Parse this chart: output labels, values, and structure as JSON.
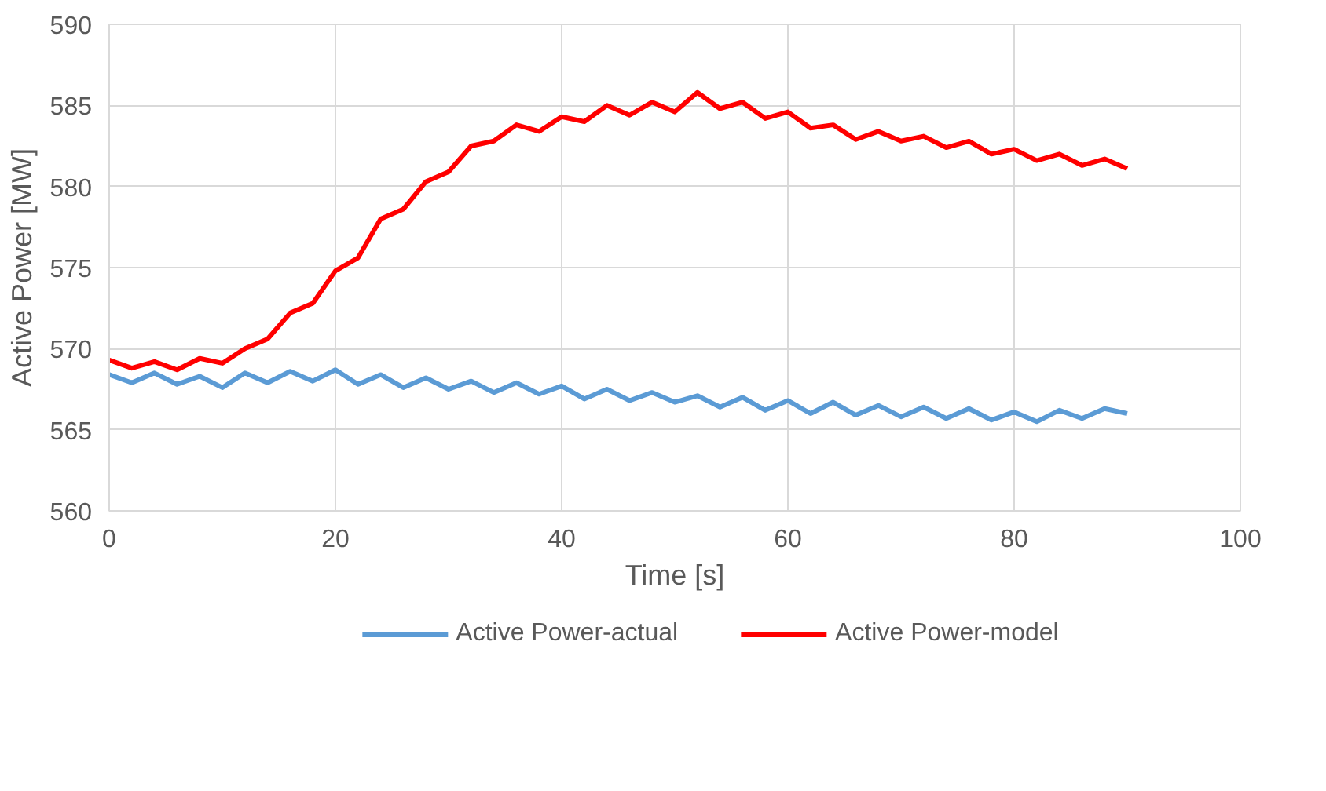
{
  "chart_data": {
    "type": "line",
    "xlabel": "Time [s]",
    "ylabel": "Active Power [MW]",
    "xlim": [
      0,
      100
    ],
    "xticks": [
      0,
      20,
      40,
      60,
      80,
      100
    ],
    "ylim": [
      560,
      590
    ],
    "yticks": [
      560,
      565,
      570,
      575,
      580,
      585,
      590
    ],
    "grid": true,
    "legend": "bottom",
    "marker": "none",
    "line_style": "solid",
    "x": [
      0,
      2,
      4,
      6,
      8,
      10,
      12,
      14,
      16,
      18,
      20,
      22,
      24,
      26,
      28,
      30,
      32,
      34,
      36,
      38,
      40,
      42,
      44,
      46,
      48,
      50,
      52,
      54,
      56,
      58,
      60,
      62,
      64,
      66,
      68,
      70,
      72,
      74,
      76,
      78,
      80,
      82,
      84,
      86,
      88,
      90
    ],
    "series": [
      {
        "name": "Active Power-actual",
        "color": "#5b9bd5",
        "values": [
          568.4,
          567.9,
          568.5,
          567.8,
          568.3,
          567.6,
          568.5,
          567.9,
          568.6,
          568.0,
          568.7,
          567.8,
          568.4,
          567.6,
          568.2,
          567.5,
          568.0,
          567.3,
          567.9,
          567.2,
          567.7,
          566.9,
          567.5,
          566.8,
          567.3,
          566.7,
          567.1,
          566.4,
          567.0,
          566.2,
          566.8,
          566.0,
          566.7,
          565.9,
          566.5,
          565.8,
          566.4,
          565.7,
          566.3,
          565.6,
          566.1,
          565.5,
          566.2,
          565.7,
          566.3,
          566.0
        ]
      },
      {
        "name": "Active Power-model",
        "color": "#ff0000",
        "values": [
          569.3,
          568.8,
          569.2,
          568.7,
          569.4,
          569.1,
          570.0,
          570.6,
          572.2,
          572.8,
          574.8,
          575.6,
          578.0,
          578.6,
          580.3,
          580.9,
          582.5,
          582.8,
          583.8,
          583.4,
          584.3,
          584.0,
          585.0,
          584.4,
          585.2,
          584.6,
          585.8,
          584.8,
          585.2,
          584.2,
          584.6,
          583.6,
          583.8,
          582.9,
          583.4,
          582.8,
          583.1,
          582.4,
          582.8,
          582.0,
          582.3,
          581.6,
          582.0,
          581.3,
          581.7,
          581.1
        ]
      }
    ]
  }
}
